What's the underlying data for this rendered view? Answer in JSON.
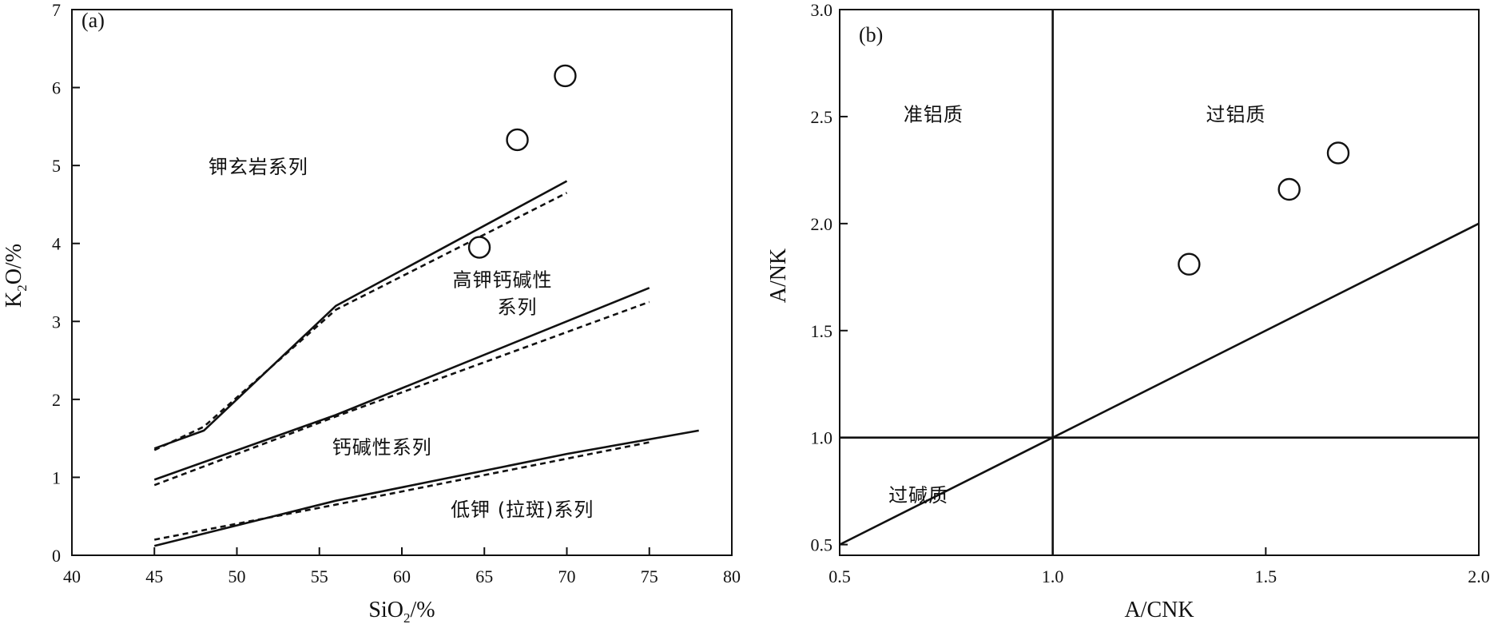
{
  "chart_data": [
    {
      "id": "a",
      "type": "scatter",
      "panel_label": "(a)",
      "xlabel": "SiO",
      "xlabel_sub": "2",
      "xlabel_suffix": "/%",
      "ylabel": "K",
      "ylabel_sub": "2",
      "ylabel_suffix": "O/%",
      "xlim": [
        40,
        80
      ],
      "ylim": [
        0,
        7
      ],
      "xticks": [
        40,
        45,
        50,
        55,
        60,
        65,
        70,
        75,
        80
      ],
      "yticks": [
        0,
        1,
        2,
        3,
        4,
        5,
        6,
        7
      ],
      "points": [
        {
          "x": 64.7,
          "y": 3.95
        },
        {
          "x": 67.0,
          "y": 5.33
        },
        {
          "x": 69.9,
          "y": 6.15
        }
      ],
      "solid_lines": [
        [
          [
            45,
            1.37
          ],
          [
            48,
            1.6
          ],
          [
            56,
            3.2
          ],
          [
            70,
            4.8
          ]
        ],
        [
          [
            45,
            0.97
          ],
          [
            56,
            1.8
          ],
          [
            75,
            3.43
          ]
        ],
        [
          [
            45,
            0.12
          ],
          [
            56,
            0.7
          ],
          [
            70,
            1.3
          ],
          [
            78,
            1.6
          ]
        ]
      ],
      "dashed_lines": [
        [
          [
            45,
            1.35
          ],
          [
            48,
            1.65
          ],
          [
            56,
            3.15
          ],
          [
            70,
            4.65
          ]
        ],
        [
          [
            45,
            0.9
          ],
          [
            56,
            1.78
          ],
          [
            75,
            3.25
          ]
        ],
        [
          [
            45,
            0.2
          ],
          [
            56,
            0.65
          ],
          [
            75,
            1.45
          ]
        ]
      ],
      "region_labels": [
        {
          "text": "钾玄岩系列",
          "x": 51.3,
          "y": 4.9
        },
        {
          "text": "高钾钙碱性",
          "x": 66.1,
          "y": 3.45
        },
        {
          "text": "系列",
          "x": 67.0,
          "y": 3.1
        },
        {
          "text": "钙碱性系列",
          "x": 58.8,
          "y": 1.3
        },
        {
          "text": "低钾 (拉斑)系列",
          "x": 67.3,
          "y": 0.5
        }
      ]
    },
    {
      "id": "b",
      "type": "scatter",
      "panel_label": "(b)",
      "xlabel": "A/CNK",
      "ylabel": "A/NK",
      "xlim": [
        0.5,
        2.0
      ],
      "ylim": [
        0.45,
        3.0
      ],
      "xticks": [
        "0.5",
        "1.0",
        "1.5",
        "2.0"
      ],
      "yticks": [
        "0.5",
        "1.0",
        "1.5",
        "2.0",
        "2.5",
        "3.0"
      ],
      "points": [
        {
          "x": 1.32,
          "y": 1.81
        },
        {
          "x": 1.555,
          "y": 2.16
        },
        {
          "x": 1.67,
          "y": 2.33
        }
      ],
      "lines": [
        [
          [
            1.0,
            0.45
          ],
          [
            1.0,
            3.0
          ]
        ],
        [
          [
            0.5,
            1.0
          ],
          [
            2.0,
            1.0
          ]
        ],
        [
          [
            0.5,
            0.5
          ],
          [
            2.0,
            2.0
          ]
        ]
      ],
      "region_labels": [
        {
          "text": "准铝质",
          "x": 0.72,
          "y": 2.48
        },
        {
          "text": "过铝质",
          "x": 1.43,
          "y": 2.48
        },
        {
          "text": "过碱质",
          "x": 0.685,
          "y": 0.7
        }
      ]
    }
  ]
}
